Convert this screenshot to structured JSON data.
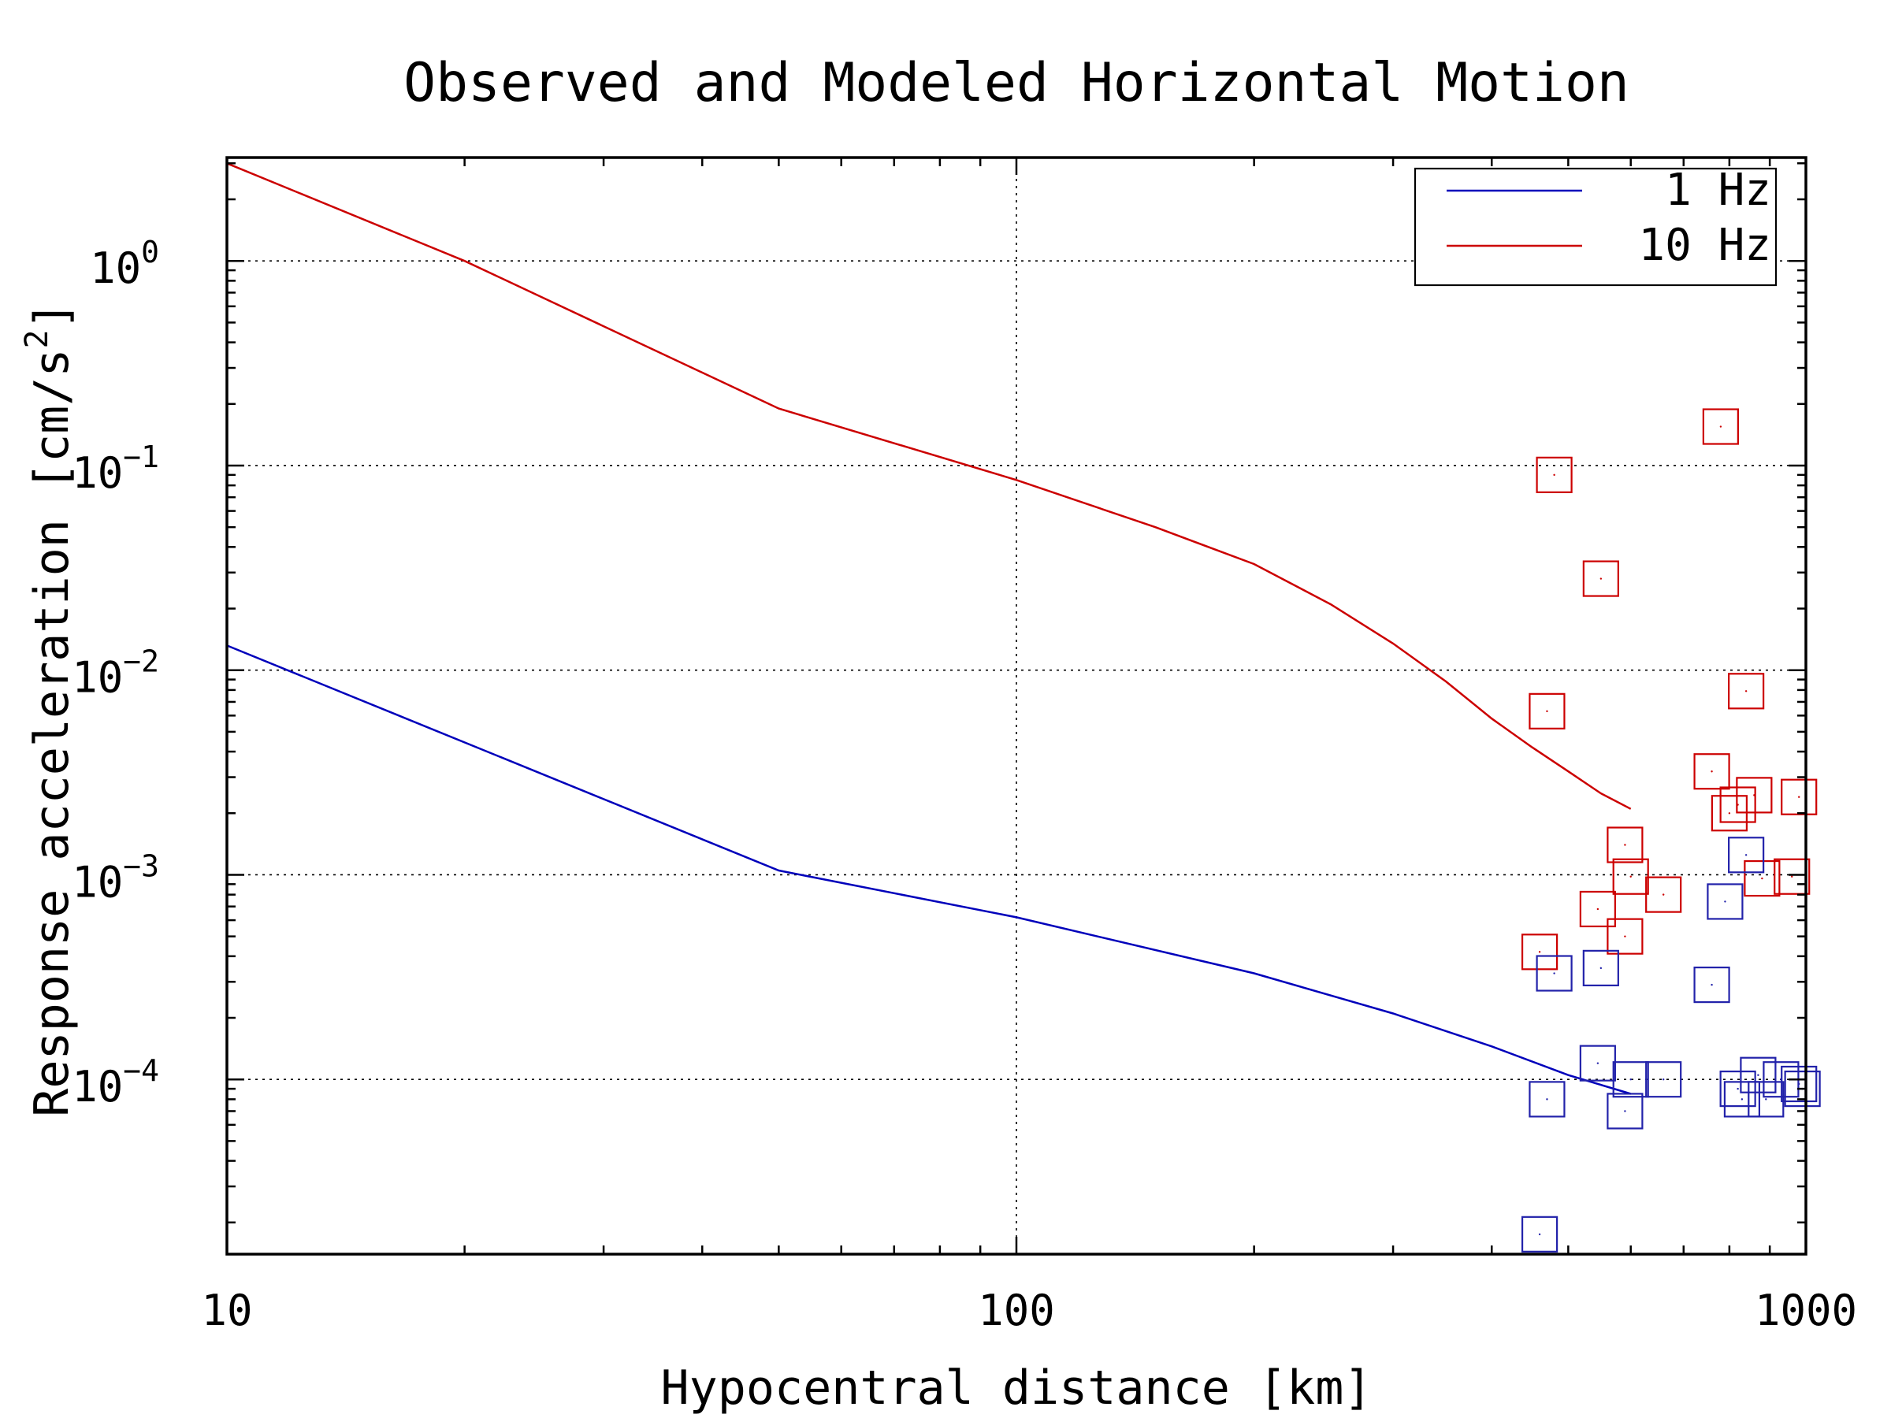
{
  "chart_data": {
    "type": "line",
    "title": "Observed and Modeled Horizontal Motion",
    "xlabel": "Hypocentral distance [km]",
    "ylabel": "Response acceleration [cm/s",
    "ylabel_superscript": "2",
    "ylabel_suffix": "]",
    "x_scale": "log",
    "y_scale": "log",
    "xlim": [
      10,
      1000
    ],
    "ylim": [
      1.4e-05,
      3.2
    ],
    "grid": true,
    "legend_position": "top-right",
    "x_ticks": [
      {
        "value": 10,
        "label": "10"
      },
      {
        "value": 100,
        "label": "100"
      },
      {
        "value": 1000,
        "label": "1000"
      }
    ],
    "y_ticks": [
      {
        "value": 1,
        "base": "10",
        "exp": "0"
      },
      {
        "value": 0.1,
        "base": "10",
        "exp": "−1"
      },
      {
        "value": 0.01,
        "base": "10",
        "exp": "−2"
      },
      {
        "value": 0.001,
        "base": "10",
        "exp": "−3"
      },
      {
        "value": 0.0001,
        "base": "10",
        "exp": "−4"
      }
    ],
    "series": [
      {
        "name": "1 Hz",
        "kind": "line",
        "color": "#0000bb",
        "x": [
          10,
          50,
          100,
          200,
          300,
          400,
          500,
          600
        ],
        "y": [
          0.0132,
          0.00105,
          0.00062,
          0.00033,
          0.00021,
          0.000145,
          0.000105,
          8.5e-05
        ]
      },
      {
        "name": "10 Hz",
        "kind": "line",
        "color": "#cc0000",
        "x": [
          10,
          20,
          50,
          100,
          150,
          200,
          250,
          300,
          350,
          400,
          450,
          500,
          550,
          600
        ],
        "y": [
          3.0,
          1.0,
          0.19,
          0.085,
          0.05,
          0.033,
          0.021,
          0.0135,
          0.0088,
          0.0058,
          0.0042,
          0.0032,
          0.0025,
          0.0021
        ]
      },
      {
        "kind": "scatter",
        "color": "#cc0000",
        "x": [
          480,
          550,
          470,
          780,
          840,
          760,
          820,
          800,
          860,
          980,
          590,
          600,
          545,
          590,
          660,
          460,
          880,
          960
        ],
        "y": [
          0.09,
          0.028,
          0.0063,
          0.155,
          0.0079,
          0.0032,
          0.0022,
          0.002,
          0.00245,
          0.0024,
          0.0014,
          0.00098,
          0.00068,
          0.0005,
          0.0008,
          0.00042,
          0.00096,
          0.00098
        ]
      },
      {
        "kind": "scatter",
        "color": "#2222aa",
        "x": [
          840,
          790,
          760,
          550,
          480,
          545,
          660,
          600,
          590,
          820,
          870,
          930,
          980,
          990,
          830,
          890,
          470,
          460
        ],
        "y": [
          0.00125,
          0.00074,
          0.00029,
          0.00035,
          0.00033,
          0.00012,
          0.0001,
          0.0001,
          7e-05,
          9e-05,
          0.000105,
          0.0001,
          9.5e-05,
          9e-05,
          8e-05,
          8e-05,
          8e-05,
          1.75e-05
        ]
      }
    ]
  }
}
